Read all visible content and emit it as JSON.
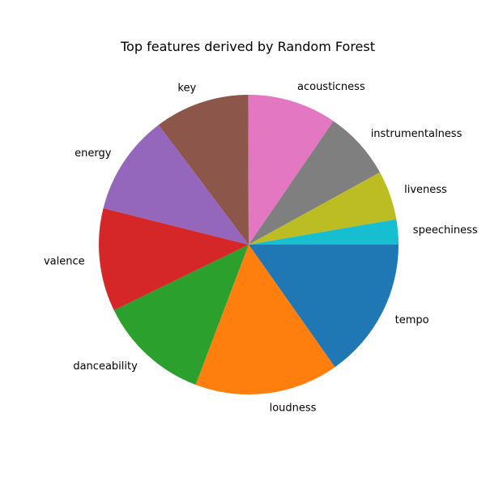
{
  "chart_data": {
    "type": "pie",
    "title": "Top features derived by Random Forest",
    "labels": [
      "tempo",
      "loudness",
      "danceability",
      "valence",
      "energy",
      "key",
      "acousticness",
      "instrumentalness",
      "liveness",
      "speechiness"
    ],
    "values": [
      15.2,
      15.5,
      12.0,
      11.1,
      10.8,
      10.2,
      9.6,
      7.4,
      5.3,
      2.7
    ],
    "colors": [
      "#1f77b4",
      "#ff7f0e",
      "#2ca02c",
      "#d62728",
      "#9467bd",
      "#8c564b",
      "#e377c2",
      "#7f7f7f",
      "#bcbd22",
      "#17becf"
    ],
    "start_angle_deg": 0,
    "direction": "clockwise-on-screen",
    "legend": "none",
    "grid": false
  }
}
